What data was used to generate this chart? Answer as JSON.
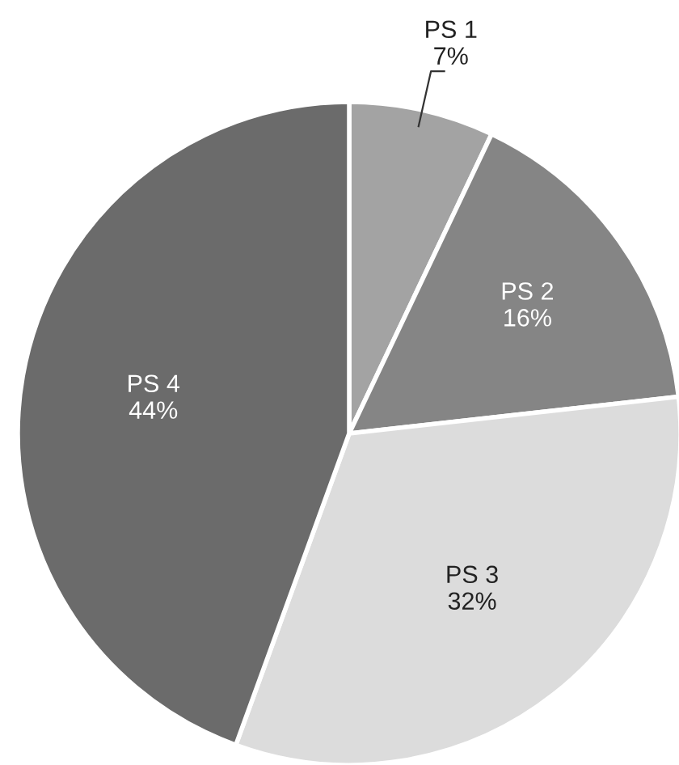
{
  "chart_data": {
    "type": "pie",
    "categories": [
      "PS 1",
      "PS 2",
      "PS 3",
      "PS 4"
    ],
    "values": [
      7,
      16,
      32,
      44
    ],
    "value_labels": [
      "7%",
      "16%",
      "32%",
      "44%"
    ],
    "colors": [
      "#a3a3a3",
      "#858585",
      "#dcdcdc",
      "#6b6b6b"
    ]
  }
}
